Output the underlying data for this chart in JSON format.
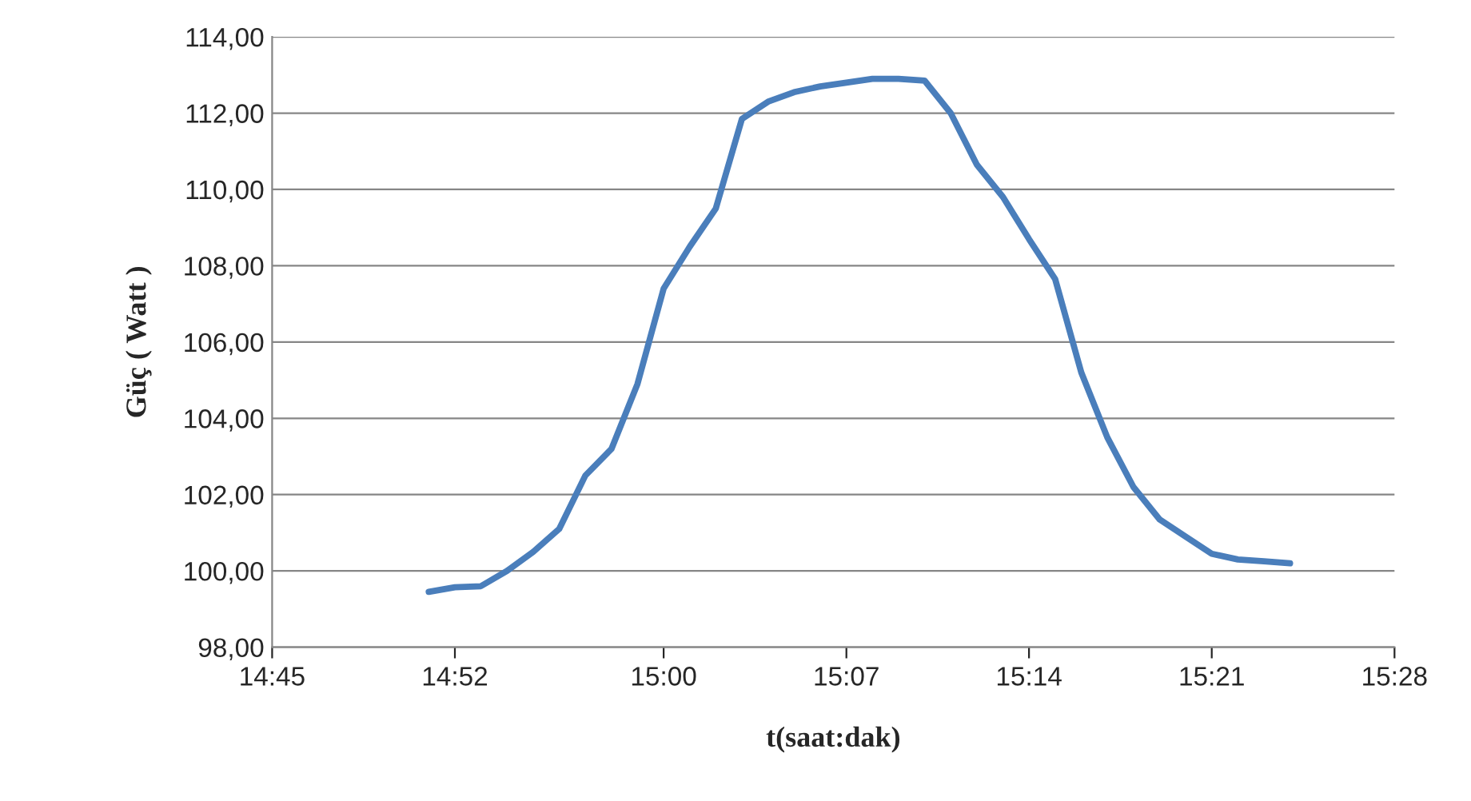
{
  "chart_data": {
    "type": "line",
    "xlabel": "t(saat:dak)",
    "ylabel": "Güç ( Watt )",
    "x": [
      14.85,
      14.8667,
      14.8833,
      14.9,
      14.9167,
      14.9333,
      14.95,
      14.9667,
      14.9833,
      15.0,
      15.0167,
      15.0333,
      15.05,
      15.0667,
      15.0833,
      15.1,
      15.1167,
      15.1333,
      15.15,
      15.1667,
      15.1833,
      15.2,
      15.2167,
      15.2333,
      15.25,
      15.2667,
      15.2833,
      15.3,
      15.3167,
      15.3333,
      15.35,
      15.3667,
      15.3833,
      15.4
    ],
    "series": [
      {
        "color": "#4a7ebb",
        "values": [
          99.45,
          99.57,
          99.6,
          100.0,
          100.5,
          101.1,
          102.5,
          103.2,
          104.9,
          107.4,
          108.5,
          109.5,
          111.85,
          112.3,
          112.55,
          112.7,
          112.8,
          112.9,
          112.9,
          112.85,
          112.0,
          110.65,
          109.8,
          108.7,
          107.65,
          105.2,
          103.5,
          102.2,
          101.35,
          100.9,
          100.45,
          100.3,
          100.25,
          100.2
        ]
      }
    ],
    "xlim": [
      14.75,
      15.4667
    ],
    "xticks": [
      {
        "value": 14.75,
        "label": "14:45"
      },
      {
        "value": 14.8667,
        "label": "14:52"
      },
      {
        "value": 15.0,
        "label": "15:00"
      },
      {
        "value": 15.1167,
        "label": "15:07"
      },
      {
        "value": 15.2333,
        "label": "15:14"
      },
      {
        "value": 15.35,
        "label": "15:21"
      },
      {
        "value": 15.4667,
        "label": "15:28"
      }
    ],
    "ylim": [
      98,
      114
    ],
    "yticks": [
      {
        "value": 98,
        "label": "98,00"
      },
      {
        "value": 100,
        "label": "100,00"
      },
      {
        "value": 102,
        "label": "102,00"
      },
      {
        "value": 104,
        "label": "104,00"
      },
      {
        "value": 106,
        "label": "106,00"
      },
      {
        "value": 108,
        "label": "108,00"
      },
      {
        "value": 110,
        "label": "110,00"
      },
      {
        "value": 112,
        "label": "112,00"
      },
      {
        "value": 114,
        "label": "114,00"
      }
    ],
    "grid": "y",
    "marker": "none",
    "line_style": "solid"
  }
}
